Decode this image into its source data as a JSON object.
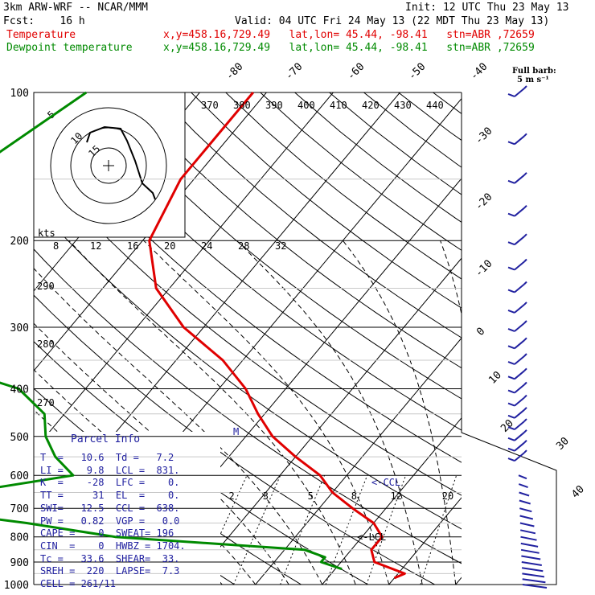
{
  "header": {
    "model": "3km ARW-WRF -- NCAR/MMM",
    "init": "Init: 12 UTC Thu 23 May 13",
    "fcst": "Fcst:    16 h",
    "valid": "Valid: 04 UTC Fri 24 May 13 (22 MDT Thu 23 May 13)",
    "temp_label": "Temperature",
    "temp_info": "x,y=458.16,729.49   lat,lon= 45.44, -98.41   stn=ABR ,72659",
    "dew_label": "Dewpoint temperature",
    "dew_info": "x,y=458.16,729.49   lat,lon= 45.44, -98.41   stn=ABR ,72659",
    "barb_title_1": "Full barb:",
    "barb_title_2": "5 m s⁻¹"
  },
  "colors": {
    "temperature": "#e00000",
    "dewpoint": "#008a00",
    "parcel_text": "#2121a0",
    "wind_barbs": "#2121a0",
    "grid": "#000000"
  },
  "chart_data": {
    "type": "line",
    "subtype": "skew-T log-P",
    "y_axis_pressure_hpa": [
      100,
      200,
      300,
      400,
      500,
      600,
      700,
      800,
      900,
      1000
    ],
    "isotherm_labels_c": [
      -80,
      -70,
      -60,
      -50,
      -40,
      -30,
      -20,
      -10,
      0,
      10,
      20,
      30,
      40
    ],
    "theta_labels_k": [
      370,
      380,
      390,
      400,
      410,
      420,
      430,
      440
    ],
    "left_theta_labels_k": [
      290,
      280,
      270
    ],
    "mixing_ratio_labels": [
      2,
      3,
      5,
      8,
      12,
      20
    ],
    "hodograph": {
      "units_label": "kts",
      "axis_labels": [
        "8",
        "12",
        "16",
        "20",
        "24",
        "28",
        "32"
      ],
      "ring_labels": [
        "5",
        "10",
        "15"
      ]
    },
    "series": [
      {
        "name": "Temperature",
        "points": [
          [
            100,
            -62
          ],
          [
            150,
            -62
          ],
          [
            200,
            -59
          ],
          [
            250,
            -52
          ],
          [
            300,
            -43
          ],
          [
            350,
            -33
          ],
          [
            400,
            -26
          ],
          [
            450,
            -21
          ],
          [
            500,
            -16
          ],
          [
            550,
            -10
          ],
          [
            600,
            -4
          ],
          [
            650,
            0
          ],
          [
            700,
            5
          ],
          [
            750,
            10
          ],
          [
            800,
            13
          ],
          [
            850,
            13
          ],
          [
            900,
            15
          ],
          [
            950,
            21
          ],
          [
            970,
            20
          ]
        ]
      },
      {
        "name": "Dewpoint temperature",
        "points": [
          [
            100,
            -87
          ],
          [
            150,
            -95
          ],
          [
            200,
            -93
          ],
          [
            250,
            -87
          ],
          [
            300,
            -76
          ],
          [
            350,
            -77
          ],
          [
            400,
            -60
          ],
          [
            450,
            -53
          ],
          [
            500,
            -50
          ],
          [
            550,
            -46
          ],
          [
            600,
            -41
          ],
          [
            650,
            -55
          ],
          [
            700,
            -61
          ],
          [
            750,
            -42
          ],
          [
            800,
            -27
          ],
          [
            850,
            3
          ],
          [
            880,
            7
          ],
          [
            900,
            7
          ],
          [
            930,
            11
          ]
        ]
      }
    ],
    "wind_barbs_hpa": [
      100,
      125,
      150,
      175,
      200,
      225,
      250,
      275,
      300,
      325,
      350,
      375,
      400,
      425,
      450,
      475,
      500,
      525,
      550
    ],
    "annotations": [
      "<-CCL",
      "<-LCL",
      "M"
    ]
  },
  "parcel": {
    "title": "Parcel Info",
    "rows": [
      "T  =   10.6  Td =   7.2",
      "LI =    9.8  LCL =  831.",
      "K  =    -28  LFC =    0.",
      "TT =     31  EL  =    0.",
      "SWI=   12.5  CCL =  638.",
      "PW =   0.82  VGP =   0.0",
      "CAPE =    0  SWEAT= 196",
      "CIN  =    0  HWBZ = 1704.",
      "Tc =   33.6  SHEAR=  33.",
      "SREH =  220  LAPSE=  7.3",
      "CELL = 261/11"
    ]
  }
}
